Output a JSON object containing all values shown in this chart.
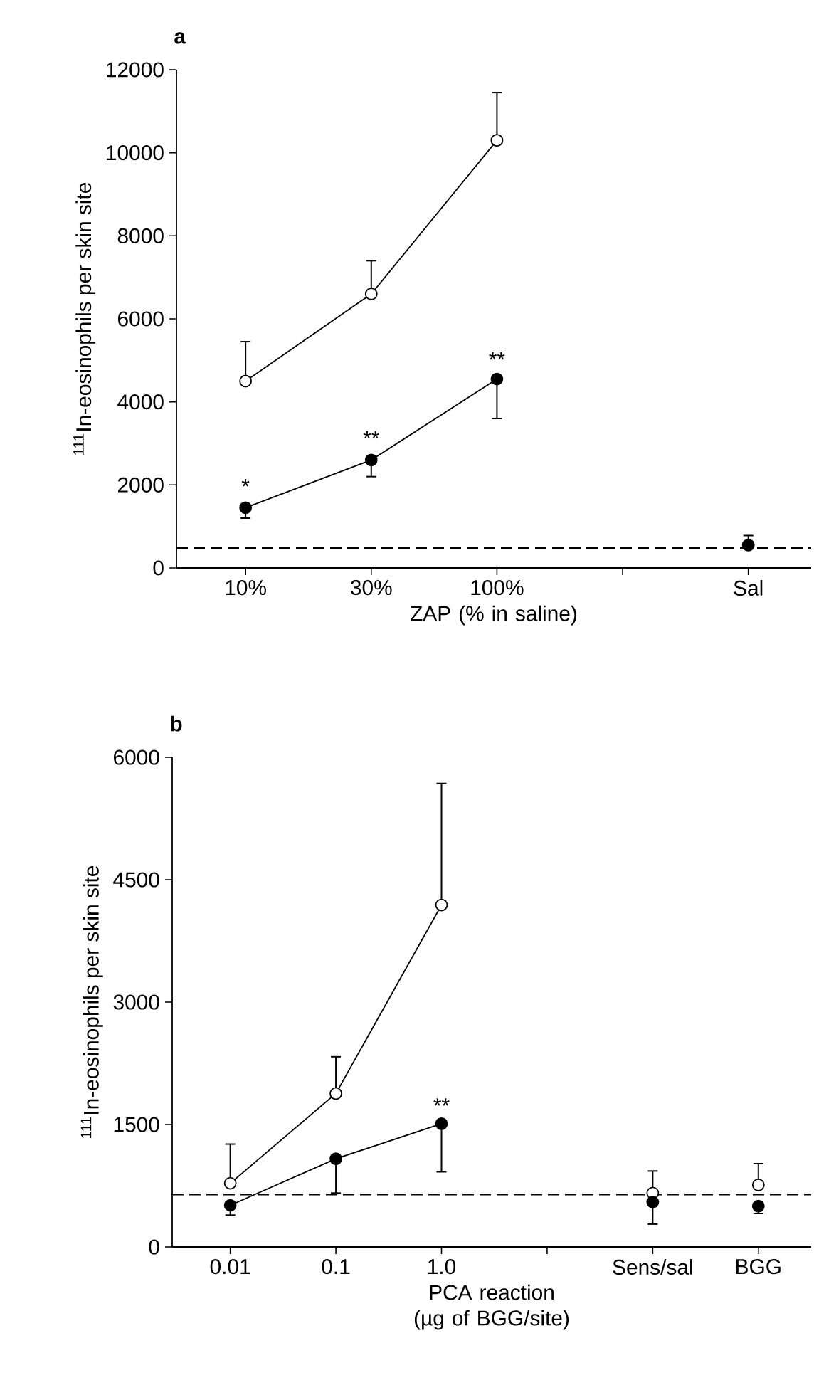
{
  "chart_data": [
    {
      "type": "line",
      "title": "a",
      "xlabel": "ZAP (% in saline)",
      "ylabel": "$^{111}$In-eosinophils per skin site",
      "categories": [
        "10%",
        "30%",
        "100%",
        null,
        "Sal"
      ],
      "ylim": [
        0,
        12000
      ],
      "yticks": [
        0,
        2000,
        4000,
        6000,
        8000,
        10000,
        12000
      ],
      "grid": false,
      "marker": "circle",
      "line_style": "solid",
      "series": [
        {
          "type": "line",
          "color": "#ffffff",
          "values": [
            4500,
            6600,
            10300,
            null,
            null
          ],
          "errors": [
            [
              4500,
              5450
            ],
            [
              6600,
              7400
            ],
            [
              10300,
              11450
            ],
            null,
            null
          ]
        },
        {
          "type": "line",
          "color": "#000000",
          "values": [
            1450,
            2600,
            4550,
            null,
            null
          ],
          "errors": [
            [
              1200,
              1450
            ],
            [
              2200,
              2600
            ],
            [
              3600,
              4550
            ],
            null,
            null
          ]
        },
        {
          "type": "scatter",
          "color": "#000000",
          "values": [
            null,
            null,
            null,
            null,
            550
          ],
          "errors": [
            null,
            null,
            null,
            null,
            [
              550,
              780
            ]
          ]
        }
      ],
      "ref_lines": [
        {
          "axis": "y",
          "value": 480,
          "line_style": "dashed",
          "color": "#000000"
        }
      ],
      "annotations": [
        {
          "text": "*",
          "x": "10%",
          "y": 1750
        },
        {
          "text": "**",
          "x": "30%",
          "y": 2900
        },
        {
          "text": "**",
          "x": "100%",
          "y": 4800
        }
      ]
    },
    {
      "type": "line",
      "title": "b",
      "xlabel": "PCA reaction (µg of BGG/site)",
      "ylabel": "$^{111}$In-eosinophils per skin site",
      "categories": [
        "0.01",
        "0.1",
        "1.0",
        null,
        "Sens/sal",
        "BGG"
      ],
      "ylim": [
        0,
        6000
      ],
      "yticks": [
        0,
        1500,
        3000,
        4500,
        6000
      ],
      "grid": false,
      "marker": "circle",
      "line_style": "solid",
      "series": [
        {
          "type": "line",
          "color": "#ffffff",
          "values": [
            780,
            1880,
            4190,
            null,
            null,
            null
          ],
          "errors": [
            [
              780,
              1260
            ],
            [
              1880,
              2330
            ],
            [
              4190,
              5680
            ],
            null,
            null,
            null
          ]
        },
        {
          "type": "line",
          "color": "#000000",
          "values": [
            510,
            1080,
            1510,
            null,
            null,
            null
          ],
          "errors": [
            [
              390,
              510
            ],
            [
              660,
              1080
            ],
            [
              920,
              1510
            ],
            null,
            null,
            null
          ]
        },
        {
          "type": "scatter",
          "color": "#ffffff",
          "values": [
            null,
            null,
            null,
            null,
            660,
            760
          ],
          "errors": [
            null,
            null,
            null,
            null,
            [
              660,
              930
            ],
            [
              760,
              1020
            ]
          ]
        },
        {
          "type": "scatter",
          "color": "#000000",
          "values": [
            null,
            null,
            null,
            null,
            550,
            500
          ],
          "errors": [
            null,
            null,
            null,
            null,
            [
              280,
              550
            ],
            [
              410,
              500
            ]
          ]
        }
      ],
      "ref_lines": [
        {
          "axis": "y",
          "value": 640,
          "line_style": "dashed",
          "color": "#000000"
        }
      ],
      "annotations": [
        {
          "text": "**",
          "x": "1.0",
          "y": 1620
        }
      ]
    }
  ]
}
